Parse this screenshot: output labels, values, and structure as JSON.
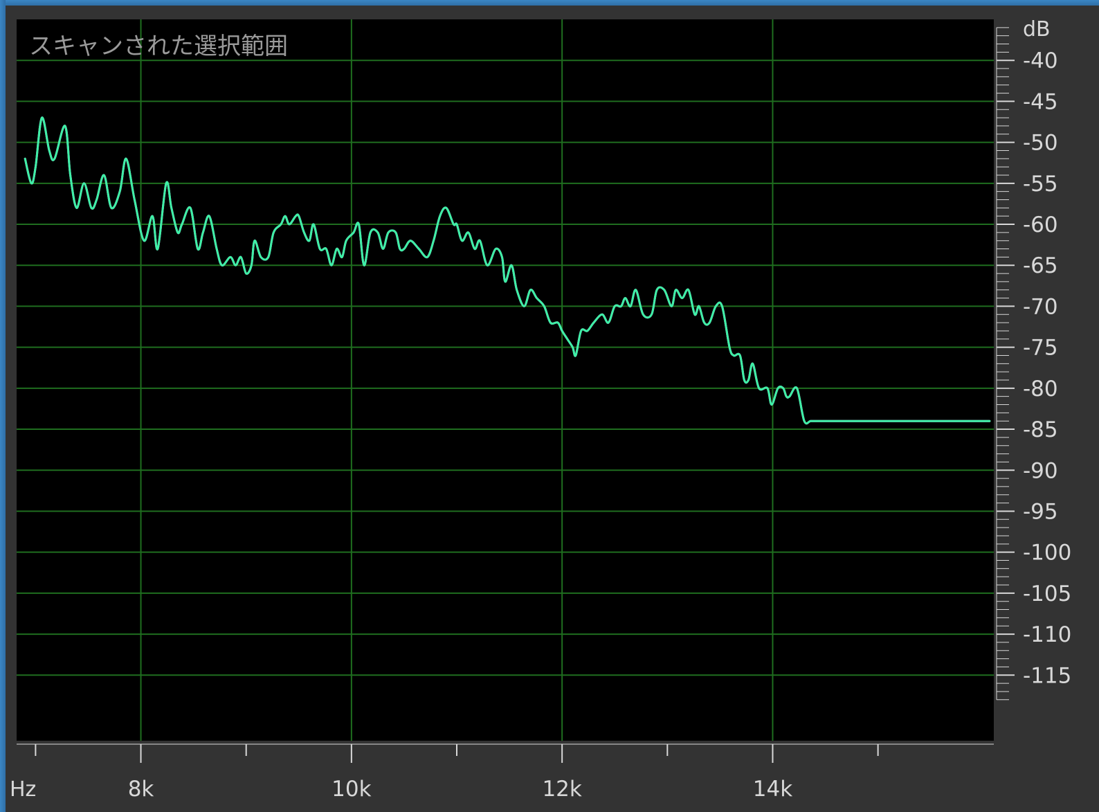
{
  "chart_data": {
    "type": "line",
    "title": "スキャンされた選択範囲",
    "xlabel": "Hz",
    "ylabel": "dB",
    "xlim": [
      6820,
      16100
    ],
    "ylim": [
      -123,
      -35
    ],
    "x_tick_labels": [
      {
        "value": 8000,
        "label": "8k"
      },
      {
        "value": 10000,
        "label": "10k"
      },
      {
        "value": 12000,
        "label": "12k"
      },
      {
        "value": 14000,
        "label": "14k"
      }
    ],
    "x_minor_ticks": [
      7000,
      9000,
      11000,
      13000,
      15000
    ],
    "y_ticks": [
      -40,
      -45,
      -50,
      -55,
      -60,
      -65,
      -70,
      -75,
      -80,
      -85,
      -90,
      -95,
      -100,
      -105,
      -110,
      -115
    ],
    "grid": true,
    "colors": {
      "background": "#000000",
      "grid": "#1f6e1f",
      "text": "#d8d8d8",
      "title_text": "#9a9a9a"
    },
    "series": [
      {
        "color": "#4f8fe8",
        "x": [
          6900,
          6960,
          7000,
          7060,
          7130,
          7180,
          7280,
          7330,
          7390,
          7460,
          7530,
          7580,
          7650,
          7720,
          7800,
          7860,
          7940,
          8030,
          8110,
          8160,
          8240,
          8290,
          8350,
          8390,
          8470,
          8540,
          8590,
          8650,
          8720,
          8770,
          8850,
          8900,
          8950,
          9000,
          9050,
          9080,
          9140,
          9210,
          9260,
          9330,
          9370,
          9410,
          9470,
          9500,
          9550,
          9600,
          9640,
          9700,
          9760,
          9810,
          9860,
          9910,
          9950,
          10020,
          10070,
          10120,
          10180,
          10250,
          10300,
          10350,
          10420,
          10460,
          10500,
          10560,
          10640,
          10720,
          10780,
          10840,
          10900,
          10970,
          11000,
          11050,
          11110,
          11170,
          11220,
          11290,
          11370,
          11430,
          11460,
          11520,
          11570,
          11640,
          11700,
          11760,
          11830,
          11890,
          11960,
          12000,
          12050,
          12100,
          12130,
          12180,
          12240,
          12300,
          12380,
          12440,
          12500,
          12560,
          12600,
          12650,
          12700,
          12770,
          12850,
          12900,
          12970,
          13040,
          13080,
          13140,
          13200,
          13260,
          13300,
          13350,
          13400,
          13460,
          13520,
          13590,
          13630,
          13690,
          13730,
          13770,
          13810,
          13870,
          13950,
          13990,
          14050,
          14100,
          14130,
          14160,
          14230,
          14300,
          14360,
          14420,
          14480,
          14520,
          14570,
          14620,
          14670,
          14720,
          14790,
          14840,
          14900,
          14960,
          15010,
          15060,
          15100,
          15140,
          15180,
          15220,
          15260,
          15310,
          15360,
          15410,
          15460,
          15510,
          15560,
          15600,
          15640,
          15690,
          15740,
          15790,
          15840,
          15900,
          15960,
          16020,
          16060
        ],
        "y": [
          -52,
          -55,
          -53,
          -47,
          -51,
          -52,
          -48,
          -54,
          -58,
          -55,
          -58,
          -57,
          -54,
          -58,
          -56,
          -52,
          -57,
          -62,
          -59,
          -63,
          -55,
          -58,
          -61,
          -60,
          -58,
          -63,
          -61,
          -59,
          -63,
          -65,
          -64,
          -65,
          -64,
          -66,
          -65,
          -62,
          -64,
          -64,
          -61,
          -60,
          -59,
          -60,
          -59,
          -59,
          -61,
          -62,
          -60,
          -63,
          -63,
          -65,
          -63,
          -64,
          -62,
          -61,
          -60,
          -65,
          -61,
          -61,
          -63,
          -61,
          -61,
          -63,
          -63,
          -62,
          -63,
          -64,
          -62,
          -59,
          -58,
          -60,
          -60,
          -62,
          -61,
          -63,
          -62,
          -65,
          -63,
          -64,
          -67,
          -65,
          -68,
          -70,
          -68,
          -69,
          -70,
          -72,
          -72,
          -73,
          -74,
          -75,
          -76,
          -73,
          -73,
          -72,
          -71,
          -72,
          -70,
          -70,
          -69,
          -70,
          -68,
          -71,
          -71,
          -68,
          -68,
          -70,
          -68,
          -69,
          -68,
          -71,
          -70,
          -72,
          -72,
          -70,
          -70,
          -75,
          -76,
          -76,
          -79,
          -79,
          -77,
          -80,
          -80,
          -82,
          -80,
          -80,
          -81,
          -81,
          -80,
          -84,
          -84,
          -84,
          -84,
          -84,
          -84,
          -84,
          -84,
          -84,
          -84,
          -84,
          -84,
          -84,
          -84,
          -84,
          -84,
          -84,
          -84,
          -84,
          -84,
          -84,
          -84,
          -84,
          -84,
          -84,
          -84,
          -84,
          -84,
          -84,
          -84,
          -84,
          -84,
          -84,
          -84,
          -84,
          -84
        ]
      },
      {
        "color": "#e0508f",
        "x": [
          6900,
          6960,
          7000,
          7060,
          7130,
          7180,
          7280,
          7330,
          7390,
          7460,
          7530,
          7580,
          7650,
          7720,
          7800,
          7860,
          7940,
          8030,
          8110,
          8160,
          8240,
          8290,
          8350,
          8390,
          8470,
          8540,
          8590,
          8650,
          8720,
          8770,
          8850,
          8900,
          8950,
          9000,
          9050,
          9080,
          9140,
          9210,
          9260,
          9330,
          9370,
          9410,
          9470,
          9500,
          9550,
          9600,
          9640,
          9700,
          9760,
          9810,
          9860,
          9910,
          9950,
          10020,
          10070,
          10120,
          10180,
          10250,
          10300,
          10350,
          10420,
          10460,
          10500,
          10560,
          10640,
          10720,
          10780,
          10840,
          10900,
          10970,
          11000,
          11050,
          11110,
          11170,
          11220,
          11290,
          11370,
          11430,
          11460,
          11520,
          11570,
          11640,
          11700,
          11760,
          11830,
          11890,
          11960,
          12000,
          12050,
          12100,
          12130,
          12180,
          12240,
          12300,
          12380,
          12440,
          12500,
          12560,
          12600,
          12650,
          12700,
          12770,
          12850,
          12900,
          12970,
          13040,
          13080,
          13140,
          13200,
          13260,
          13300,
          13350,
          13400,
          13460,
          13520,
          13590,
          13630,
          13690,
          13730,
          13770,
          13810,
          13870,
          13950,
          13990,
          14050,
          14100,
          14130,
          14160,
          14230,
          14300,
          14360,
          14420,
          14480,
          14520,
          14570,
          14620,
          14670,
          14720,
          14790,
          14840,
          14900,
          14960,
          15010,
          15060,
          15100,
          15140,
          15180,
          15220,
          15260,
          15310,
          15360,
          15410,
          15460,
          15510,
          15560,
          15600,
          15640,
          15690,
          15740,
          15790,
          15840,
          15900,
          15960,
          16020,
          16060
        ],
        "y": [
          -52,
          -55,
          -53,
          -47,
          -51,
          -52,
          -48,
          -54,
          -58,
          -55,
          -58,
          -57,
          -54,
          -58,
          -56,
          -52,
          -57,
          -62,
          -59,
          -63,
          -55,
          -58,
          -61,
          -60,
          -58,
          -63,
          -61,
          -59,
          -63,
          -65,
          -64,
          -65,
          -64,
          -66,
          -65,
          -62,
          -64,
          -64,
          -61,
          -60,
          -59,
          -60,
          -59,
          -59,
          -61,
          -62,
          -60,
          -63,
          -63,
          -65,
          -63,
          -64,
          -62,
          -61,
          -60,
          -65,
          -61,
          -61,
          -63,
          -61,
          -61,
          -63,
          -63,
          -62,
          -63,
          -64,
          -62,
          -59,
          -58,
          -60,
          -60,
          -62,
          -61,
          -63,
          -62,
          -65,
          -63,
          -64,
          -67,
          -65,
          -68,
          -70,
          -68,
          -69,
          -70,
          -72,
          -72,
          -73,
          -74,
          -75,
          -76,
          -73,
          -73,
          -72,
          -71,
          -72,
          -70,
          -70,
          -69,
          -70,
          -68,
          -71,
          -71,
          -68,
          -68,
          -70,
          -68,
          -69,
          -68,
          -71,
          -70,
          -72,
          -72,
          -70,
          -70,
          -75,
          -76,
          -76,
          -79,
          -79,
          -77,
          -80,
          -80,
          -82,
          -80,
          -80,
          -81,
          -81,
          -80,
          -84,
          -84,
          -84,
          -84,
          -84,
          -84,
          -84,
          -84,
          -84,
          -84,
          -84,
          -84,
          -84,
          -84,
          -84,
          -84,
          -84,
          -84,
          -84,
          -84,
          -84,
          -84,
          -84,
          -84,
          -84,
          -84,
          -84,
          -84,
          -84,
          -84,
          -84,
          -84,
          -84,
          -84,
          -84,
          -84
        ]
      },
      {
        "color": "#3df0a6",
        "x": [
          6900,
          6960,
          7000,
          7060,
          7130,
          7180,
          7280,
          7330,
          7390,
          7460,
          7530,
          7580,
          7650,
          7720,
          7800,
          7860,
          7940,
          8030,
          8110,
          8160,
          8240,
          8290,
          8350,
          8390,
          8470,
          8540,
          8590,
          8650,
          8720,
          8770,
          8850,
          8900,
          8950,
          9000,
          9050,
          9080,
          9140,
          9210,
          9260,
          9330,
          9370,
          9410,
          9470,
          9500,
          9550,
          9600,
          9640,
          9700,
          9760,
          9810,
          9860,
          9910,
          9950,
          10020,
          10070,
          10120,
          10180,
          10250,
          10300,
          10350,
          10420,
          10460,
          10500,
          10560,
          10640,
          10720,
          10780,
          10840,
          10900,
          10970,
          11000,
          11050,
          11110,
          11170,
          11220,
          11290,
          11370,
          11430,
          11460,
          11520,
          11570,
          11640,
          11700,
          11760,
          11830,
          11890,
          11960,
          12000,
          12050,
          12100,
          12130,
          12180,
          12240,
          12300,
          12380,
          12440,
          12500,
          12560,
          12600,
          12650,
          12700,
          12770,
          12850,
          12900,
          12970,
          13040,
          13080,
          13140,
          13200,
          13260,
          13300,
          13350,
          13400,
          13460,
          13520,
          13590,
          13630,
          13690,
          13730,
          13770,
          13810,
          13870,
          13950,
          13990,
          14050,
          14100,
          14130,
          14160,
          14230,
          14300,
          14360,
          14420,
          14480,
          14520,
          14570,
          14620,
          14670,
          14720,
          14790,
          14840,
          14900,
          14960,
          15010,
          15060,
          15100,
          15140,
          15180,
          15220,
          15260,
          15310,
          15360,
          15410,
          15460,
          15510,
          15560,
          15600,
          15640,
          15690,
          15740,
          15790,
          15840,
          15900,
          15960,
          16020,
          16060
        ],
        "y": [
          -52,
          -55,
          -53,
          -47,
          -51,
          -52,
          -48,
          -54,
          -58,
          -55,
          -58,
          -57,
          -54,
          -58,
          -56,
          -52,
          -57,
          -62,
          -59,
          -63,
          -55,
          -58,
          -61,
          -60,
          -58,
          -63,
          -61,
          -59,
          -63,
          -65,
          -64,
          -65,
          -64,
          -66,
          -65,
          -62,
          -64,
          -64,
          -61,
          -60,
          -59,
          -60,
          -59,
          -59,
          -61,
          -62,
          -60,
          -63,
          -63,
          -65,
          -63,
          -64,
          -62,
          -61,
          -60,
          -65,
          -61,
          -61,
          -63,
          -61,
          -61,
          -63,
          -63,
          -62,
          -63,
          -64,
          -62,
          -59,
          -58,
          -60,
          -60,
          -62,
          -61,
          -63,
          -62,
          -65,
          -63,
          -64,
          -67,
          -65,
          -68,
          -70,
          -68,
          -69,
          -70,
          -72,
          -72,
          -73,
          -74,
          -75,
          -76,
          -73,
          -73,
          -72,
          -71,
          -72,
          -70,
          -70,
          -69,
          -70,
          -68,
          -71,
          -71,
          -68,
          -68,
          -70,
          -68,
          -69,
          -68,
          -71,
          -70,
          -72,
          -72,
          -70,
          -70,
          -75,
          -76,
          -76,
          -79,
          -79,
          -77,
          -80,
          -80,
          -82,
          -80,
          -80,
          -81,
          -81,
          -80,
          -84,
          -84,
          -84,
          -84,
          -84,
          -84,
          -84,
          -84,
          -84,
          -84,
          -84,
          -84,
          -84,
          -84,
          -84,
          -84,
          -84,
          -84,
          -84,
          -84,
          -84,
          -84,
          -84,
          -84,
          -84,
          -84,
          -84,
          -84,
          -84,
          -84,
          -84,
          -84,
          -84,
          -84,
          -84,
          -84
        ]
      }
    ]
  }
}
